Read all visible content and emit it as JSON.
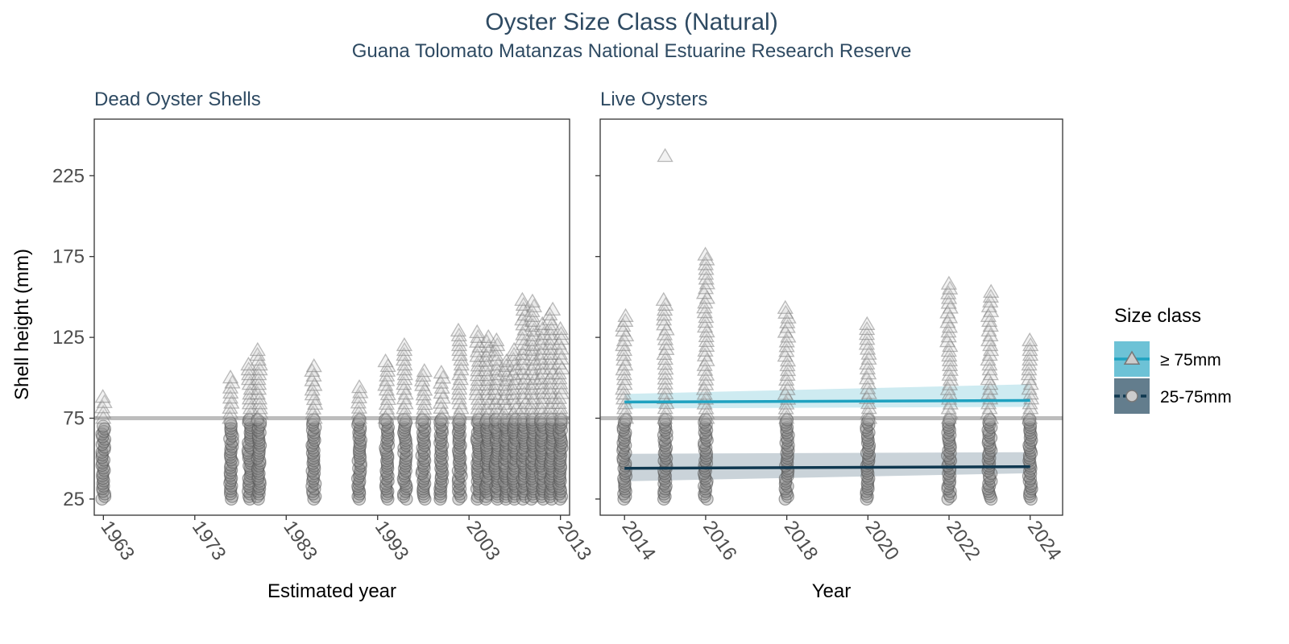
{
  "title": "Oyster Size Class (Natural)",
  "subtitle": "Guana Tolomato Matanzas National Estuarine Research Reserve",
  "colors": {
    "large": "#1FA2C0",
    "small": "#0F3850",
    "point": "#8c8c8c",
    "threshold": "#bdbdbd"
  },
  "legend": {
    "title": "Size class",
    "items": [
      {
        "label": "≥ 75mm",
        "marker": "triangle",
        "color": "#1FA2C0"
      },
      {
        "label": "25-75mm",
        "marker": "circle",
        "color": "#0F3850"
      }
    ]
  },
  "chart_data": [
    {
      "type": "scatter",
      "panel_title": "Dead Oyster Shells",
      "xlabel": "Estimated year",
      "ylabel": "Shell height (mm)",
      "xlim": [
        1962,
        2014
      ],
      "ylim": [
        15,
        260
      ],
      "xticks": [
        1963,
        1973,
        1983,
        1993,
        2003,
        2013
      ],
      "yticks": [
        25,
        75,
        125,
        175,
        225
      ],
      "threshold": 75,
      "columns": [
        {
          "x": 1963,
          "small_max": 70,
          "large_max": 88
        },
        {
          "x": 1977,
          "small_max": 72,
          "large_max": 100
        },
        {
          "x": 1979,
          "small_max": 74,
          "large_max": 108
        },
        {
          "x": 1980,
          "small_max": 74,
          "large_max": 117
        },
        {
          "x": 1986,
          "small_max": 74,
          "large_max": 107
        },
        {
          "x": 1991,
          "small_max": 74,
          "large_max": 94
        },
        {
          "x": 1994,
          "small_max": 74,
          "large_max": 110
        },
        {
          "x": 1996,
          "small_max": 74,
          "large_max": 120
        },
        {
          "x": 1998,
          "small_max": 74,
          "large_max": 104
        },
        {
          "x": 2000,
          "small_max": 74,
          "large_max": 103
        },
        {
          "x": 2002,
          "small_max": 74,
          "large_max": 129
        },
        {
          "x": 2004,
          "small_max": 74,
          "large_max": 128
        },
        {
          "x": 2005,
          "small_max": 74,
          "large_max": 125
        },
        {
          "x": 2006,
          "small_max": 74,
          "large_max": 123
        },
        {
          "x": 2007,
          "small_max": 74,
          "large_max": 110
        },
        {
          "x": 2008,
          "small_max": 74,
          "large_max": 117
        },
        {
          "x": 2009,
          "small_max": 74,
          "large_max": 148
        },
        {
          "x": 2010,
          "small_max": 74,
          "large_max": 147
        },
        {
          "x": 2011,
          "small_max": 74,
          "large_max": 133
        },
        {
          "x": 2012,
          "small_max": 74,
          "large_max": 142
        },
        {
          "x": 2013,
          "small_max": 74,
          "large_max": 130
        }
      ]
    },
    {
      "type": "scatter",
      "panel_title": "Live Oysters",
      "xlabel": "Year",
      "ylabel": "",
      "xlim": [
        2013.4,
        2024.8
      ],
      "ylim": [
        15,
        260
      ],
      "xticks": [
        2014,
        2016,
        2018,
        2020,
        2022,
        2024
      ],
      "yticks": [
        25,
        75,
        125,
        175,
        225
      ],
      "threshold": 75,
      "columns": [
        {
          "x": 2014,
          "small_max": 74,
          "large_max": 138
        },
        {
          "x": 2015,
          "small_max": 74,
          "large_max": 148,
          "outlier": 237
        },
        {
          "x": 2016,
          "small_max": 74,
          "large_max": 176
        },
        {
          "x": 2018,
          "small_max": 74,
          "large_max": 143
        },
        {
          "x": 2020,
          "small_max": 74,
          "large_max": 133
        },
        {
          "x": 2022,
          "small_max": 74,
          "large_max": 158
        },
        {
          "x": 2023,
          "small_max": 74,
          "large_max": 153
        },
        {
          "x": 2024,
          "small_max": 74,
          "large_max": 123
        }
      ],
      "trends": [
        {
          "class": "≥ 75mm",
          "x": [
            2014,
            2024
          ],
          "y": [
            85,
            86
          ],
          "ci_lower": [
            81,
            82
          ],
          "ci_upper": [
            90,
            96
          ]
        },
        {
          "class": "25-75mm",
          "x": [
            2014,
            2024
          ],
          "y": [
            44,
            45
          ],
          "ci_lower": [
            36,
            41
          ],
          "ci_upper": [
            53,
            54
          ]
        }
      ]
    }
  ]
}
